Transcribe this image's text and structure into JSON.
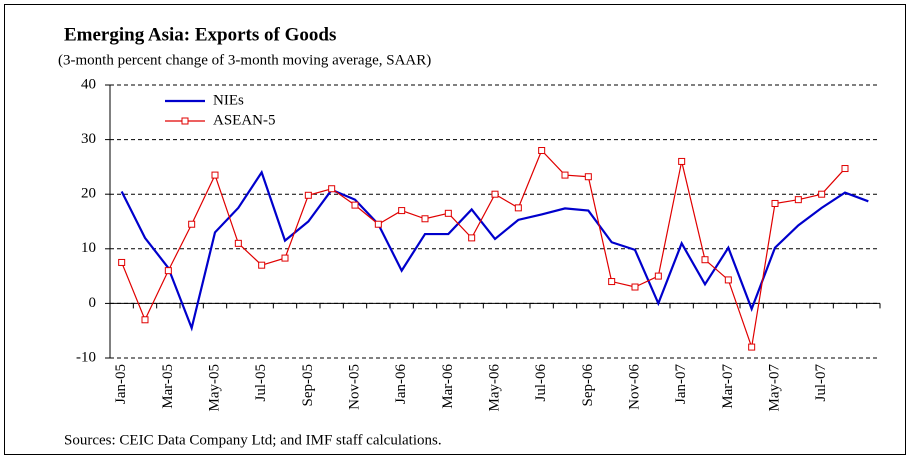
{
  "chart_data": {
    "type": "line",
    "title": "Emerging Asia: Exports of Goods",
    "subtitle": "(3-month percent change of 3-month moving average, SAAR)",
    "source": "Sources: CEIC Data Company Ltd; and IMF staff calculations.",
    "categories": [
      "Jan-05",
      null,
      "Mar-05",
      null,
      "May-05",
      null,
      "Jul-05",
      null,
      "Sep-05",
      null,
      "Nov-05",
      null,
      "Jan-06",
      null,
      "Mar-06",
      null,
      "May-06",
      null,
      "Jul-06",
      null,
      "Sep-06",
      null,
      "Nov-06",
      null,
      "Jan-07",
      null,
      "Mar-07",
      null,
      "May-07",
      null,
      "Jul-07",
      null,
      null
    ],
    "series": [
      {
        "name": "NIEs",
        "color": "#0000cc",
        "marker": false,
        "values": [
          20.5,
          12,
          6.5,
          -4.5,
          13,
          17.5,
          24,
          11.5,
          15,
          20.8,
          19,
          14.5,
          6,
          12.7,
          12.7,
          17.2,
          11.8,
          15.3,
          16.3,
          17.4,
          17,
          11.2,
          9.8,
          0,
          11,
          3.5,
          10.2,
          -1,
          10.2,
          14.3,
          17.5,
          20.3,
          18.7
        ]
      },
      {
        "name": "ASEAN-5",
        "color": "#e00000",
        "marker": true,
        "values": [
          7.5,
          -3,
          6,
          14.5,
          23.5,
          11,
          7,
          8.3,
          19.8,
          21,
          18,
          14.5,
          17,
          15.5,
          16.5,
          12,
          20,
          17.5,
          28,
          23.5,
          23.2,
          4,
          3,
          5,
          26,
          8,
          4.3,
          -8,
          18.3,
          19,
          20,
          24.7,
          null
        ]
      }
    ],
    "ylim": [
      -10,
      40
    ],
    "yticks": [
      -10,
      0,
      10,
      20,
      30,
      40
    ],
    "grid": true,
    "legend": "upper left"
  }
}
